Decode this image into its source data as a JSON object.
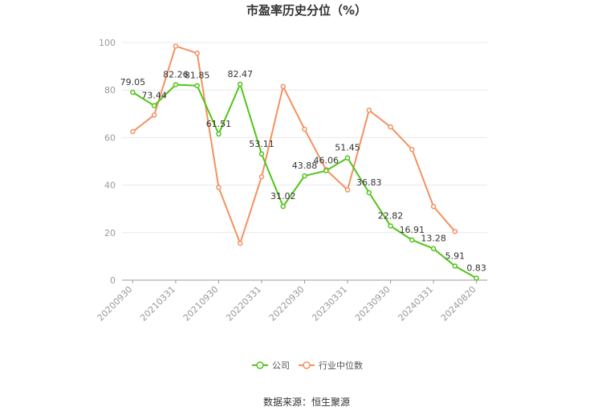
{
  "chart_data": {
    "type": "line",
    "title": "市盈率历史分位（%）",
    "xlabel": "",
    "ylabel": "",
    "ylim": [
      0,
      100
    ],
    "yticks": [
      0,
      20,
      40,
      60,
      80,
      100
    ],
    "x_tick_labels": [
      "20200930",
      "20210331",
      "20210930",
      "20220331",
      "20220930",
      "20230331",
      "20230930",
      "20240331",
      "20240820"
    ],
    "x_tick_positions": [
      0,
      2,
      4,
      6,
      8,
      10,
      12,
      14,
      16
    ],
    "grid": true,
    "legend_position": "bottom",
    "series": [
      {
        "name": "公司",
        "color": "#52c41a",
        "values": [
          79.05,
          73.44,
          82.26,
          81.85,
          61.51,
          82.47,
          53.11,
          31.02,
          43.88,
          46.06,
          51.45,
          36.83,
          22.82,
          16.91,
          13.28,
          5.91,
          0.83
        ],
        "data_labels": [
          "79.05",
          "73.44",
          "82.26",
          "81.85",
          "61.51",
          "82.47",
          "53.11",
          "31.02",
          "43.88",
          "46.06",
          "51.45",
          "36.83",
          "22.82",
          "16.91",
          "13.28",
          "5.91",
          "0.83"
        ]
      },
      {
        "name": "行业中位数",
        "color": "#f4915f",
        "values": [
          62.5,
          69.5,
          98.5,
          95.5,
          39,
          15.5,
          43.5,
          81.5,
          63.5,
          46.5,
          38,
          71.5,
          64.5,
          55,
          31,
          20.5
        ]
      }
    ],
    "source": "数据来源：恒生聚源"
  }
}
